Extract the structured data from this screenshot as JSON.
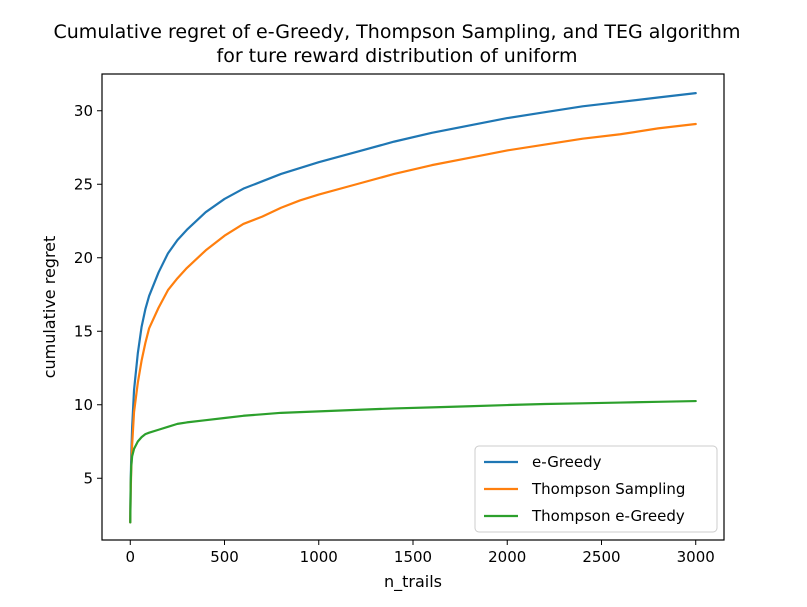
{
  "chart_data": {
    "type": "line",
    "title_lines": [
      "Cumulative regret of e-Greedy, Thompson Sampling, and TEG algorithm",
      "for ture reward distribution of uniform"
    ],
    "xlabel": "n_trails",
    "ylabel": "cumulative regret",
    "xlim": [
      -150,
      3150
    ],
    "ylim": [
      0.8,
      32.5
    ],
    "xticks": [
      0,
      500,
      1000,
      1500,
      2000,
      2500,
      3000
    ],
    "yticks": [
      5,
      10,
      15,
      20,
      25,
      30
    ],
    "grid": false,
    "legend_position": "lower-right",
    "x": [
      0,
      2,
      5,
      10,
      20,
      40,
      60,
      80,
      100,
      150,
      200,
      250,
      300,
      400,
      500,
      600,
      700,
      800,
      900,
      1000,
      1200,
      1400,
      1600,
      1800,
      2000,
      2200,
      2400,
      2600,
      2800,
      3000
    ],
    "series": [
      {
        "name": "e-Greedy",
        "color": "#1f77b4",
        "values": [
          2.0,
          4.5,
          6.5,
          8.5,
          11.0,
          13.5,
          15.3,
          16.5,
          17.4,
          19.0,
          20.3,
          21.2,
          21.9,
          23.1,
          24.0,
          24.7,
          25.2,
          25.7,
          26.1,
          26.5,
          27.2,
          27.9,
          28.5,
          29.0,
          29.5,
          29.9,
          30.3,
          30.6,
          30.9,
          31.2
        ]
      },
      {
        "name": "Thompson Sampling",
        "color": "#ff7f0e",
        "values": [
          2.0,
          4.0,
          5.5,
          7.3,
          9.5,
          11.5,
          13.0,
          14.2,
          15.2,
          16.6,
          17.8,
          18.6,
          19.3,
          20.5,
          21.5,
          22.3,
          22.8,
          23.4,
          23.9,
          24.3,
          25.0,
          25.7,
          26.3,
          26.8,
          27.3,
          27.7,
          28.1,
          28.4,
          28.8,
          29.1
        ]
      },
      {
        "name": "Thompson e-Greedy",
        "color": "#2ca02c",
        "values": [
          2.0,
          4.5,
          5.8,
          6.5,
          7.0,
          7.5,
          7.8,
          8.0,
          8.1,
          8.3,
          8.5,
          8.7,
          8.8,
          8.95,
          9.1,
          9.25,
          9.35,
          9.45,
          9.5,
          9.55,
          9.65,
          9.75,
          9.82,
          9.9,
          9.98,
          10.05,
          10.1,
          10.15,
          10.2,
          10.25
        ]
      }
    ]
  }
}
